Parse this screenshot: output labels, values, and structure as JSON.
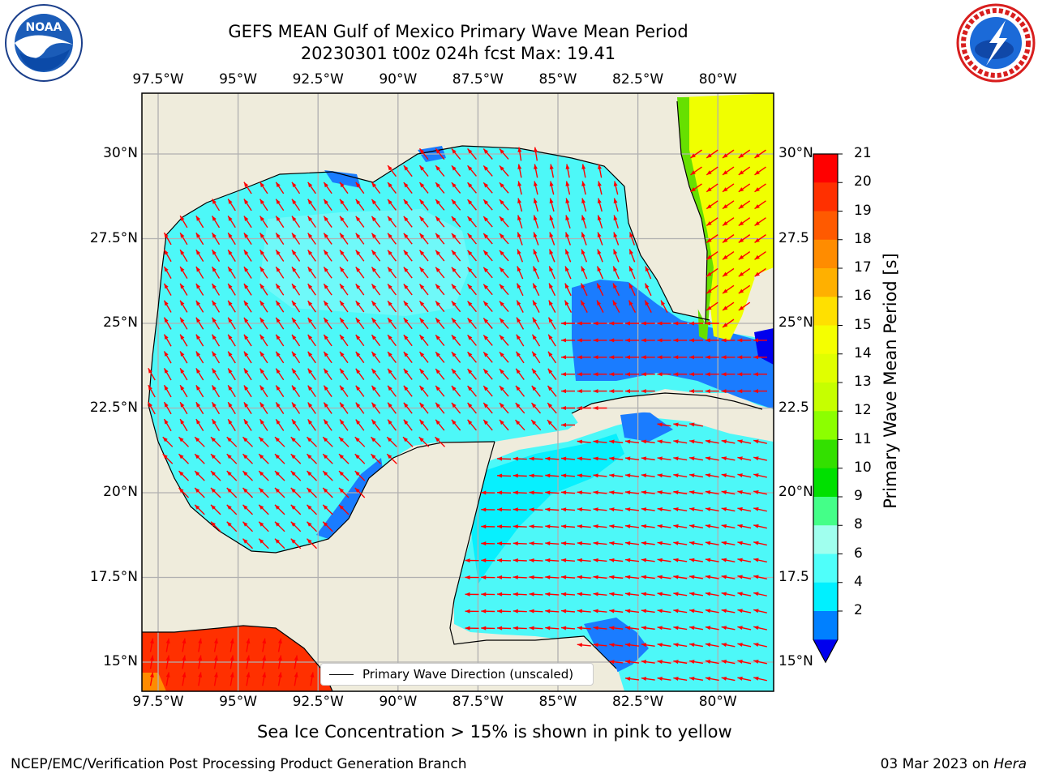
{
  "header": {
    "title_line1": "GEFS MEAN Gulf of Mexico Primary Wave Mean Period",
    "title_line2": "20230301 t00z 024h fcst   Max: 19.41"
  },
  "logos": {
    "left": "noara-logo",
    "left_text": "NOAA",
    "right": "nws-logo",
    "right_ring_text": "NATIONAL WEATHER SERVICE"
  },
  "axes": {
    "lon_labels": [
      "97.5°W",
      "95°W",
      "92.5°W",
      "90°W",
      "87.5°W",
      "85°W",
      "82.5°W",
      "80°W"
    ],
    "lat_labels_left": [
      "30°N",
      "27.5°N",
      "25°N",
      "22.5°N",
      "20°N",
      "17.5°N",
      "15°N"
    ],
    "lat_labels_right": [
      "30°N",
      "27.5",
      "25°N",
      "22.5",
      "20°N",
      "17.5",
      "15°N"
    ]
  },
  "legend": {
    "label": "Primary Wave Direction (unscaled)"
  },
  "colorbar": {
    "label": "Primary Wave Mean Period [s]",
    "ticks": [
      "21",
      "20",
      "19",
      "18",
      "17",
      "16",
      "15",
      "14",
      "13",
      "12",
      "11",
      "10",
      "9",
      "8",
      "6",
      "4",
      "2"
    ],
    "colors": [
      "#ff0000",
      "#ff3000",
      "#ff5a00",
      "#ff8c00",
      "#ffb000",
      "#ffe000",
      "#f5ff00",
      "#e0ff00",
      "#c6ff00",
      "#8cff00",
      "#33e000",
      "#00e000",
      "#44ff88",
      "#a0ffee",
      "#4ffffa",
      "#00f0ff",
      "#0080ff"
    ],
    "under_color": "#0000ee"
  },
  "footer": {
    "caption": "Sea Ice Concentration > 15% is shown in pink to yellow",
    "org": "NCEP/EMC/Verification Post Processing Product Generation Branch",
    "date": "03 Mar 2023 on",
    "host": "Hera"
  },
  "map_colors": {
    "land": "#efecdc",
    "sea_main": "#4df8f8",
    "sea_light": "#8cfcfc",
    "sea_dark": "#1a7cff",
    "sea_cyan": "#00eefe",
    "pacific_red": "#ff3000",
    "atlantic_yellow": "#f0ff00",
    "atlantic_green": "#66e000",
    "arrow": "#ff0000",
    "grid": "#b0b0b0"
  }
}
